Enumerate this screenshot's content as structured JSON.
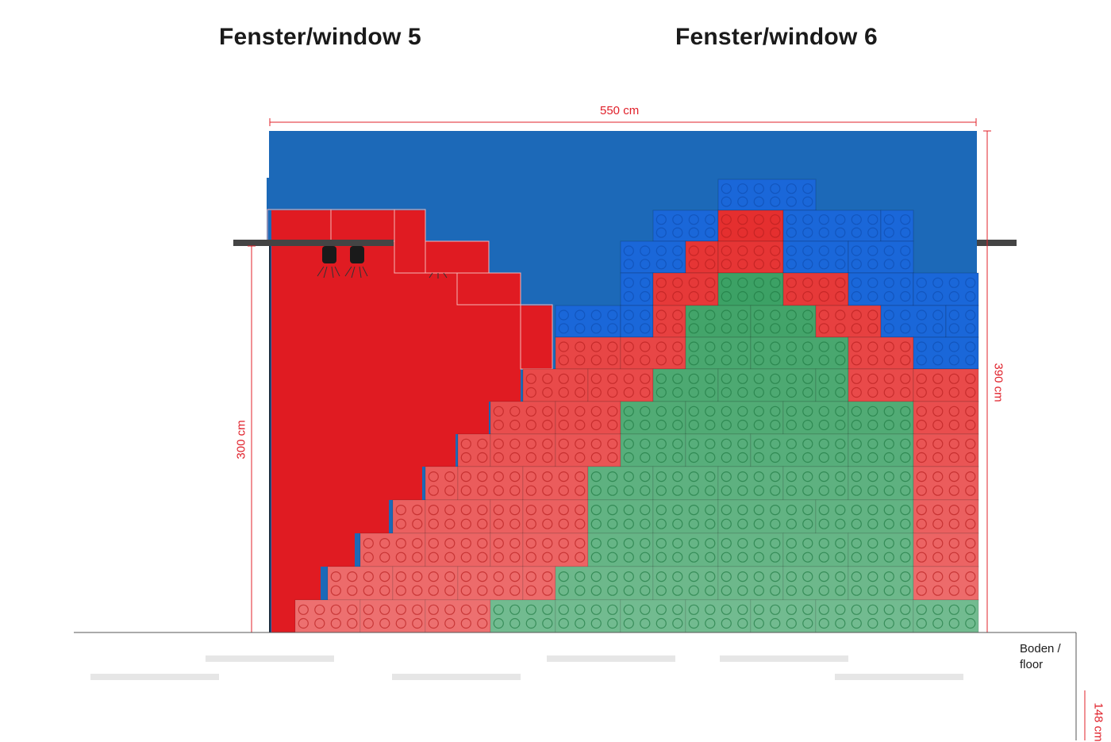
{
  "titles": {
    "left": "Fenster/window 5",
    "right": "Fenster/window 6"
  },
  "dimensions": {
    "width": "550 cm",
    "height_right": "390 cm",
    "height_left": "300 cm",
    "floor_clearance": "148 cm"
  },
  "floor_label": {
    "line1": "Boden /",
    "line2": "floor"
  },
  "colors": {
    "sky_blue": "#1c69b8",
    "brick_blue": "#1a67d9",
    "brick_red": "#e52b2b",
    "brick_green": "#2e9a5a",
    "wall_red": "#e01b22",
    "dimension_red": "#e0202a",
    "rail": "#444444"
  }
}
